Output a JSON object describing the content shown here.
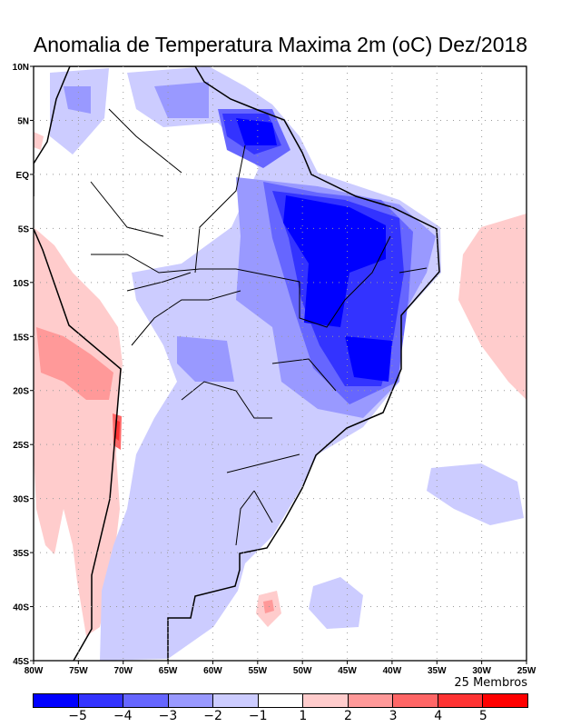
{
  "title": "Anomalia de Temperatura Maxima 2m (oC) Dez/2018",
  "lat_labels": [
    "10N",
    "5N",
    "EQ",
    "5S",
    "10S",
    "15S",
    "20S",
    "25S",
    "30S",
    "35S",
    "40S",
    "45S"
  ],
  "lon_labels": [
    "80W",
    "75W",
    "70W",
    "65W",
    "60W",
    "55W",
    "50W",
    "45W",
    "40W",
    "35W",
    "30W",
    "25W"
  ],
  "members": "25 Membros",
  "colorbar": {
    "colors": [
      "#0000ff",
      "#3333ff",
      "#6666ff",
      "#9999ff",
      "#ccccff",
      "#ffffff",
      "#ffcccc",
      "#ff9999",
      "#ff6666",
      "#ff3333",
      "#ff0000"
    ],
    "labels": [
      "−5",
      "−4",
      "−3",
      "−2",
      "−1",
      "1",
      "2",
      "3",
      "4",
      "5"
    ]
  }
}
